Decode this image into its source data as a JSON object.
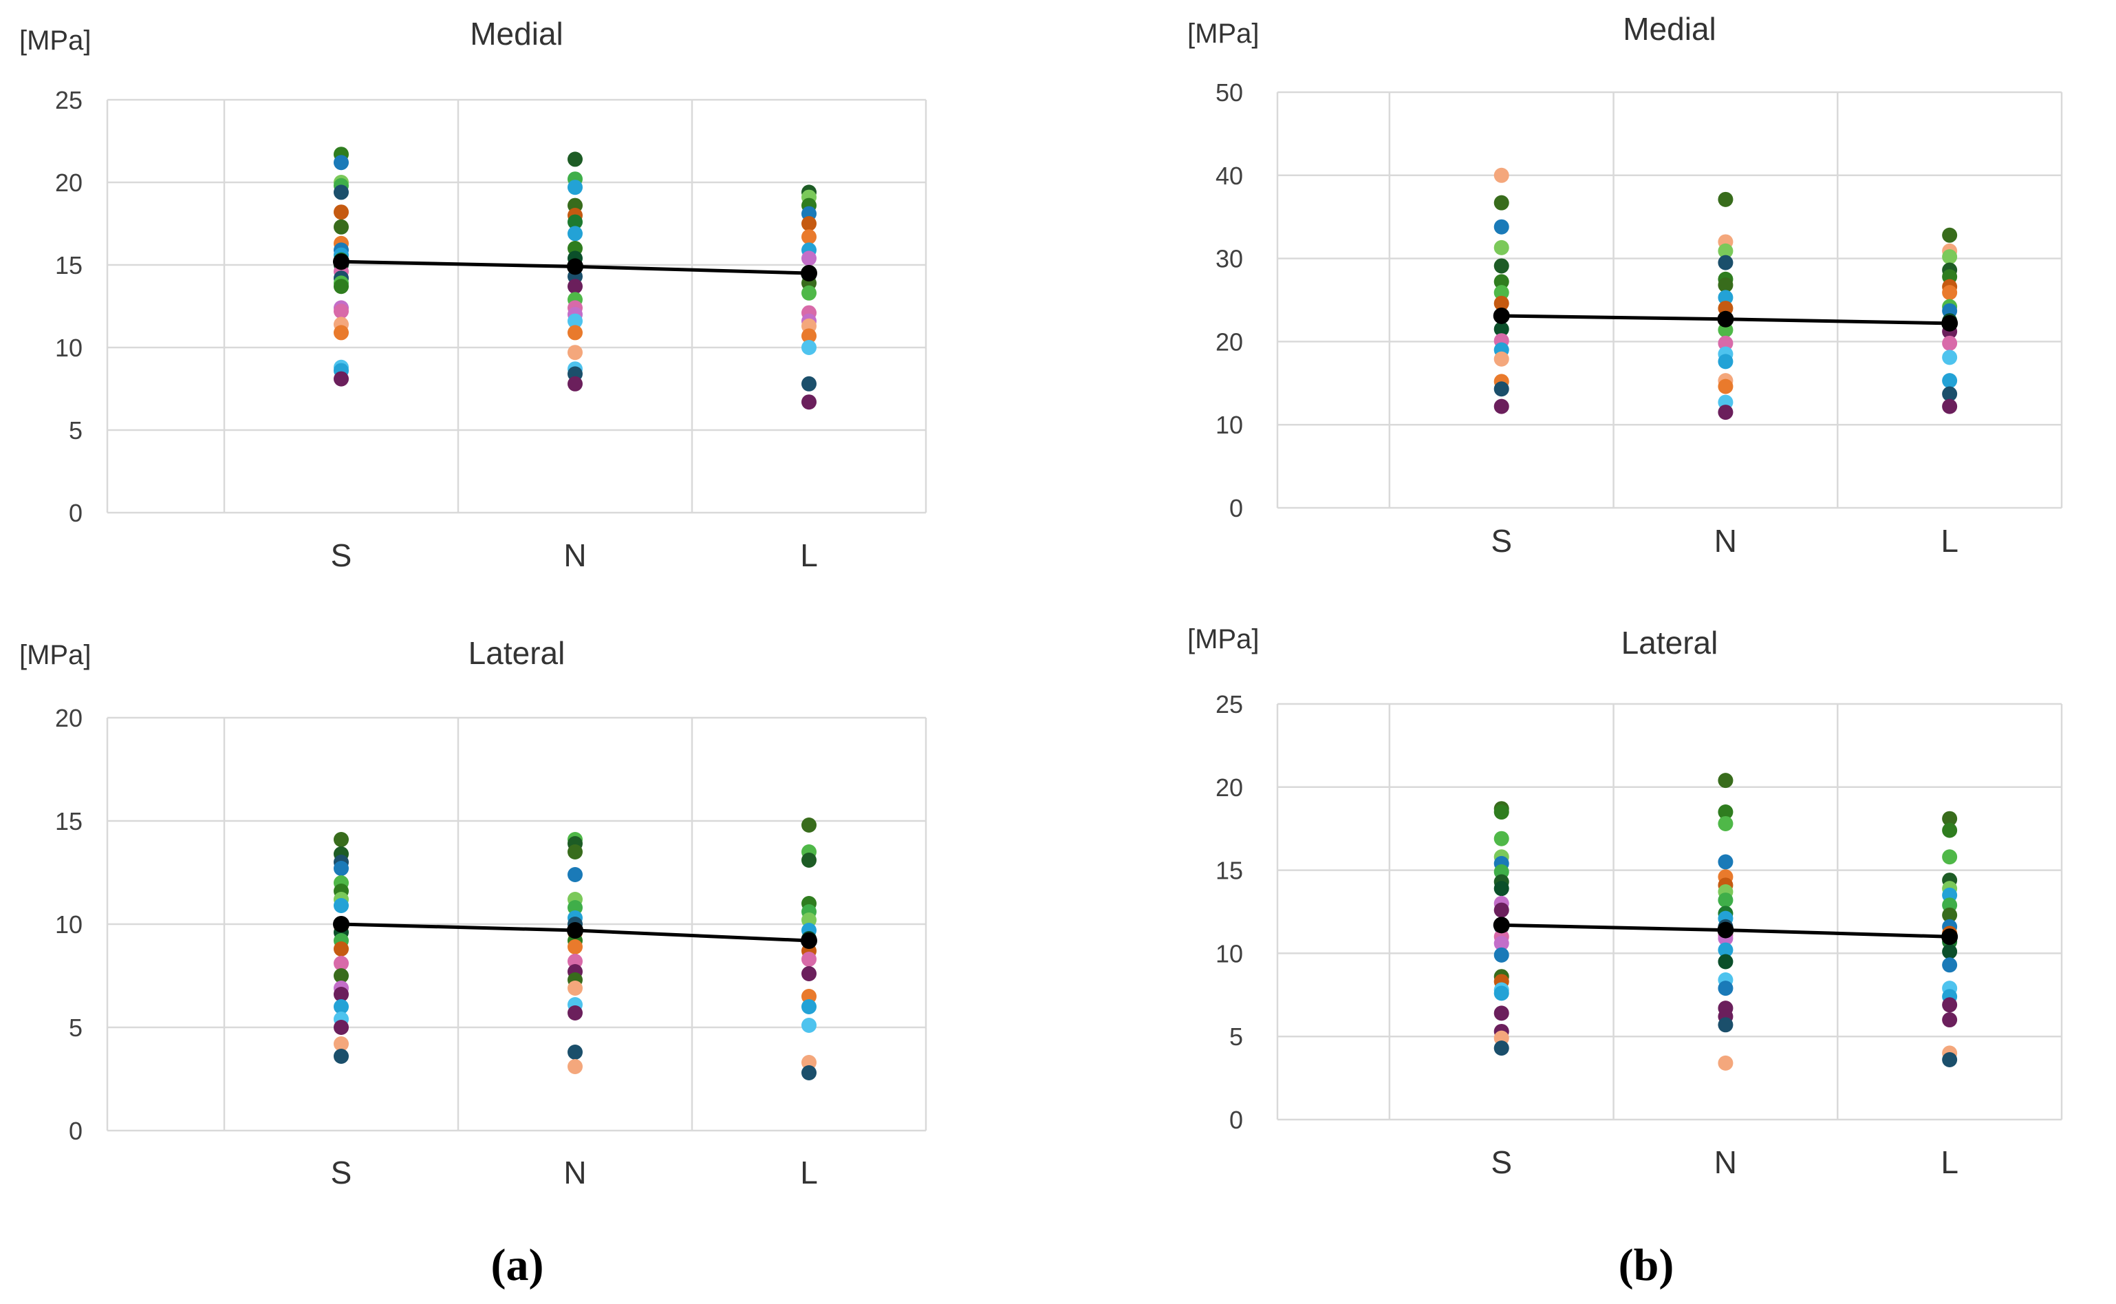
{
  "figure": {
    "panel_labels": [
      "(a)",
      "(b)"
    ]
  },
  "chart_data": [
    {
      "type": "scatter",
      "panel": "a",
      "title": "Medial",
      "unit": "[MPa]",
      "categories": [
        "S",
        "N",
        "L"
      ],
      "ylim": [
        0,
        25
      ],
      "yticks": [
        0,
        5,
        10,
        15,
        20,
        25
      ],
      "grid": true,
      "points": {
        "S": [
          {
            "y": 21.7,
            "c": "#2f7d1f"
          },
          {
            "y": 21.2,
            "c": "#1a7ab8"
          },
          {
            "y": 20.0,
            "c": "#7bc95a"
          },
          {
            "y": 19.8,
            "c": "#3fae49"
          },
          {
            "y": 19.4,
            "c": "#1b4f6b"
          },
          {
            "y": 18.2,
            "c": "#c55a11"
          },
          {
            "y": 17.3,
            "c": "#386c1c"
          },
          {
            "y": 16.3,
            "c": "#e97a2c"
          },
          {
            "y": 15.9,
            "c": "#1a7ab8"
          },
          {
            "y": 15.6,
            "c": "#23a2d6"
          },
          {
            "y": 15.3,
            "c": "#1d7a2f"
          },
          {
            "y": 15.0,
            "c": "#0b4f2a"
          },
          {
            "y": 14.6,
            "c": "#d86aa9"
          },
          {
            "y": 14.2,
            "c": "#1b4f6b"
          },
          {
            "y": 13.9,
            "c": "#4fb848"
          },
          {
            "y": 13.7,
            "c": "#2f7d1f"
          },
          {
            "y": 12.4,
            "c": "#c36ec9"
          },
          {
            "y": 12.2,
            "c": "#d86aa9"
          },
          {
            "y": 11.4,
            "c": "#f4a77c"
          },
          {
            "y": 10.9,
            "c": "#e97a2c"
          },
          {
            "y": 8.8,
            "c": "#4ec3ee"
          },
          {
            "y": 8.6,
            "c": "#23a2d6"
          },
          {
            "y": 8.1,
            "c": "#6b1f5c"
          }
        ],
        "N": [
          {
            "y": 21.4,
            "c": "#1d5c25"
          },
          {
            "y": 20.2,
            "c": "#3fae49"
          },
          {
            "y": 19.7,
            "c": "#23a2d6"
          },
          {
            "y": 18.6,
            "c": "#386c1c"
          },
          {
            "y": 18.0,
            "c": "#c55a11"
          },
          {
            "y": 17.6,
            "c": "#1d7a2f"
          },
          {
            "y": 16.9,
            "c": "#23a2d6"
          },
          {
            "y": 16.0,
            "c": "#2f7d1f"
          },
          {
            "y": 15.4,
            "c": "#0b4f2a"
          },
          {
            "y": 14.9,
            "c": "#1a7ab8"
          },
          {
            "y": 14.3,
            "c": "#1b4f6b"
          },
          {
            "y": 13.7,
            "c": "#6b1f5c"
          },
          {
            "y": 12.9,
            "c": "#4fb848"
          },
          {
            "y": 12.4,
            "c": "#d86aa9"
          },
          {
            "y": 12.0,
            "c": "#c36ec9"
          },
          {
            "y": 11.6,
            "c": "#4ec3ee"
          },
          {
            "y": 10.9,
            "c": "#e97a2c"
          },
          {
            "y": 9.7,
            "c": "#f4a77c"
          },
          {
            "y": 8.7,
            "c": "#4ec3ee"
          },
          {
            "y": 8.4,
            "c": "#1b4f6b"
          },
          {
            "y": 7.8,
            "c": "#6b1f5c"
          }
        ],
        "L": [
          {
            "y": 19.4,
            "c": "#1d5c25"
          },
          {
            "y": 19.1,
            "c": "#7bc95a"
          },
          {
            "y": 18.6,
            "c": "#2f7d1f"
          },
          {
            "y": 18.1,
            "c": "#1a7ab8"
          },
          {
            "y": 17.5,
            "c": "#c55a11"
          },
          {
            "y": 16.7,
            "c": "#e97a2c"
          },
          {
            "y": 15.9,
            "c": "#23a2d6"
          },
          {
            "y": 15.4,
            "c": "#c36ec9"
          },
          {
            "y": 14.4,
            "c": "#0b4f2a"
          },
          {
            "y": 13.9,
            "c": "#386c1c"
          },
          {
            "y": 13.3,
            "c": "#4fb848"
          },
          {
            "y": 12.1,
            "c": "#d86aa9"
          },
          {
            "y": 11.6,
            "c": "#c36ec9"
          },
          {
            "y": 11.3,
            "c": "#f4a77c"
          },
          {
            "y": 10.7,
            "c": "#e97a2c"
          },
          {
            "y": 10.0,
            "c": "#4ec3ee"
          },
          {
            "y": 7.8,
            "c": "#1b4f6b"
          },
          {
            "y": 6.7,
            "c": "#6b1f5c"
          }
        ]
      },
      "mean_line": {
        "color": "#000000",
        "values": [
          15.2,
          14.9,
          14.5
        ]
      }
    },
    {
      "type": "scatter",
      "panel": "a",
      "title": "Lateral",
      "unit": "[MPa]",
      "categories": [
        "S",
        "N",
        "L"
      ],
      "ylim": [
        0,
        20
      ],
      "yticks": [
        0,
        5,
        10,
        15,
        20
      ],
      "grid": true,
      "points": {
        "S": [
          {
            "y": 14.1,
            "c": "#386c1c"
          },
          {
            "y": 13.4,
            "c": "#1d5c25"
          },
          {
            "y": 13.0,
            "c": "#1b4f6b"
          },
          {
            "y": 12.7,
            "c": "#1a7ab8"
          },
          {
            "y": 12.0,
            "c": "#4fb848"
          },
          {
            "y": 11.6,
            "c": "#2f7d1f"
          },
          {
            "y": 11.2,
            "c": "#7bc95a"
          },
          {
            "y": 10.9,
            "c": "#23a2d6"
          },
          {
            "y": 9.9,
            "c": "#e97a2c"
          },
          {
            "y": 9.6,
            "c": "#0b4f2a"
          },
          {
            "y": 9.2,
            "c": "#3fae49"
          },
          {
            "y": 8.8,
            "c": "#c55a11"
          },
          {
            "y": 8.1,
            "c": "#d86aa9"
          },
          {
            "y": 7.5,
            "c": "#386c1c"
          },
          {
            "y": 6.9,
            "c": "#c36ec9"
          },
          {
            "y": 6.6,
            "c": "#6b1f5c"
          },
          {
            "y": 6.0,
            "c": "#23a2d6"
          },
          {
            "y": 5.4,
            "c": "#4ec3ee"
          },
          {
            "y": 5.0,
            "c": "#6b1f5c"
          },
          {
            "y": 4.2,
            "c": "#f4a77c"
          },
          {
            "y": 3.6,
            "c": "#1b4f6b"
          }
        ],
        "N": [
          {
            "y": 14.1,
            "c": "#4fb848"
          },
          {
            "y": 13.9,
            "c": "#1d5c25"
          },
          {
            "y": 13.5,
            "c": "#386c1c"
          },
          {
            "y": 12.4,
            "c": "#1a7ab8"
          },
          {
            "y": 11.2,
            "c": "#7bc95a"
          },
          {
            "y": 10.8,
            "c": "#3fae49"
          },
          {
            "y": 10.3,
            "c": "#23a2d6"
          },
          {
            "y": 10.0,
            "c": "#1b4f6b"
          },
          {
            "y": 9.6,
            "c": "#c55a11"
          },
          {
            "y": 9.2,
            "c": "#2f7d1f"
          },
          {
            "y": 8.9,
            "c": "#e97a2c"
          },
          {
            "y": 8.2,
            "c": "#d86aa9"
          },
          {
            "y": 7.7,
            "c": "#6b1f5c"
          },
          {
            "y": 7.3,
            "c": "#386c1c"
          },
          {
            "y": 6.9,
            "c": "#f4a77c"
          },
          {
            "y": 6.1,
            "c": "#4ec3ee"
          },
          {
            "y": 5.7,
            "c": "#6b1f5c"
          },
          {
            "y": 3.8,
            "c": "#1b4f6b"
          },
          {
            "y": 3.1,
            "c": "#f4a77c"
          }
        ],
        "L": [
          {
            "y": 14.8,
            "c": "#386c1c"
          },
          {
            "y": 13.5,
            "c": "#4fb848"
          },
          {
            "y": 13.1,
            "c": "#1d5c25"
          },
          {
            "y": 11.0,
            "c": "#2f7d1f"
          },
          {
            "y": 10.6,
            "c": "#3fae49"
          },
          {
            "y": 10.2,
            "c": "#7bc95a"
          },
          {
            "y": 9.7,
            "c": "#23a2d6"
          },
          {
            "y": 9.3,
            "c": "#0b4f2a"
          },
          {
            "y": 8.7,
            "c": "#c55a11"
          },
          {
            "y": 8.3,
            "c": "#d86aa9"
          },
          {
            "y": 7.6,
            "c": "#6b1f5c"
          },
          {
            "y": 6.5,
            "c": "#e97a2c"
          },
          {
            "y": 6.0,
            "c": "#23a2d6"
          },
          {
            "y": 5.1,
            "c": "#4ec3ee"
          },
          {
            "y": 3.3,
            "c": "#f4a77c"
          },
          {
            "y": 2.8,
            "c": "#1b4f6b"
          }
        ]
      },
      "mean_line": {
        "color": "#000000",
        "values": [
          10.0,
          9.7,
          9.2
        ]
      }
    },
    {
      "type": "scatter",
      "panel": "b",
      "title": "Medial",
      "unit": "[MPa]",
      "categories": [
        "S",
        "N",
        "L"
      ],
      "ylim": [
        0,
        50
      ],
      "yticks": [
        0,
        10,
        20,
        30,
        40,
        50
      ],
      "grid": true,
      "points": {
        "S": [
          {
            "y": 40.0,
            "c": "#f4a77c"
          },
          {
            "y": 36.7,
            "c": "#386c1c"
          },
          {
            "y": 33.8,
            "c": "#1a7ab8"
          },
          {
            "y": 31.3,
            "c": "#7bc95a"
          },
          {
            "y": 29.1,
            "c": "#1d5c25"
          },
          {
            "y": 27.2,
            "c": "#2f7d1f"
          },
          {
            "y": 25.9,
            "c": "#4fb848"
          },
          {
            "y": 24.6,
            "c": "#c55a11"
          },
          {
            "y": 23.1,
            "c": "#1b4f6b"
          },
          {
            "y": 21.5,
            "c": "#0b4f2a"
          },
          {
            "y": 20.1,
            "c": "#d86aa9"
          },
          {
            "y": 19.0,
            "c": "#23a2d6"
          },
          {
            "y": 17.9,
            "c": "#f4a77c"
          },
          {
            "y": 15.2,
            "c": "#e97a2c"
          },
          {
            "y": 14.3,
            "c": "#1b4f6b"
          },
          {
            "y": 12.2,
            "c": "#6b1f5c"
          }
        ],
        "N": [
          {
            "y": 37.1,
            "c": "#386c1c"
          },
          {
            "y": 32.0,
            "c": "#f4a77c"
          },
          {
            "y": 30.9,
            "c": "#7bc95a"
          },
          {
            "y": 29.5,
            "c": "#1b4f6b"
          },
          {
            "y": 27.5,
            "c": "#2f7d1f"
          },
          {
            "y": 26.8,
            "c": "#386c1c"
          },
          {
            "y": 25.3,
            "c": "#23a2d6"
          },
          {
            "y": 24.0,
            "c": "#c55a11"
          },
          {
            "y": 22.7,
            "c": "#1a7ab8"
          },
          {
            "y": 21.4,
            "c": "#4fb848"
          },
          {
            "y": 19.8,
            "c": "#d86aa9"
          },
          {
            "y": 18.5,
            "c": "#4ec3ee"
          },
          {
            "y": 17.6,
            "c": "#23a2d6"
          },
          {
            "y": 15.3,
            "c": "#f4a77c"
          },
          {
            "y": 14.6,
            "c": "#e97a2c"
          },
          {
            "y": 12.7,
            "c": "#4ec3ee"
          },
          {
            "y": 11.5,
            "c": "#6b1f5c"
          }
        ],
        "L": [
          {
            "y": 32.8,
            "c": "#386c1c"
          },
          {
            "y": 30.9,
            "c": "#f4a77c"
          },
          {
            "y": 30.2,
            "c": "#7bc95a"
          },
          {
            "y": 28.6,
            "c": "#1d5c25"
          },
          {
            "y": 27.8,
            "c": "#2f7d1f"
          },
          {
            "y": 26.6,
            "c": "#c55a11"
          },
          {
            "y": 25.9,
            "c": "#e97a2c"
          },
          {
            "y": 24.2,
            "c": "#4fb848"
          },
          {
            "y": 23.7,
            "c": "#1a7ab8"
          },
          {
            "y": 22.5,
            "c": "#0b4f2a"
          },
          {
            "y": 21.2,
            "c": "#6b1f5c"
          },
          {
            "y": 19.8,
            "c": "#d86aa9"
          },
          {
            "y": 18.1,
            "c": "#4ec3ee"
          },
          {
            "y": 15.3,
            "c": "#23a2d6"
          },
          {
            "y": 13.7,
            "c": "#1b4f6b"
          },
          {
            "y": 12.2,
            "c": "#6b1f5c"
          }
        ]
      },
      "mean_line": {
        "color": "#000000",
        "values": [
          23.1,
          22.7,
          22.2
        ]
      }
    },
    {
      "type": "scatter",
      "panel": "b",
      "title": "Lateral",
      "unit": "[MPa]",
      "categories": [
        "S",
        "N",
        "L"
      ],
      "ylim": [
        0,
        25
      ],
      "yticks": [
        0,
        5,
        10,
        15,
        20,
        25
      ],
      "grid": true,
      "points": {
        "S": [
          {
            "y": 18.7,
            "c": "#386c1c"
          },
          {
            "y": 18.5,
            "c": "#2f7d1f"
          },
          {
            "y": 16.9,
            "c": "#4fb848"
          },
          {
            "y": 15.8,
            "c": "#7bc95a"
          },
          {
            "y": 15.4,
            "c": "#1a7ab8"
          },
          {
            "y": 14.9,
            "c": "#3fae49"
          },
          {
            "y": 14.3,
            "c": "#1d5c25"
          },
          {
            "y": 13.9,
            "c": "#0b4f2a"
          },
          {
            "y": 13.0,
            "c": "#c36ec9"
          },
          {
            "y": 12.6,
            "c": "#6b1f5c"
          },
          {
            "y": 11.6,
            "c": "#1b4f6b"
          },
          {
            "y": 11.0,
            "c": "#d86aa9"
          },
          {
            "y": 10.6,
            "c": "#c36ec9"
          },
          {
            "y": 9.9,
            "c": "#1a7ab8"
          },
          {
            "y": 8.6,
            "c": "#386c1c"
          },
          {
            "y": 8.3,
            "c": "#c55a11"
          },
          {
            "y": 7.8,
            "c": "#4ec3ee"
          },
          {
            "y": 7.6,
            "c": "#23a2d6"
          },
          {
            "y": 6.4,
            "c": "#6b1f5c"
          },
          {
            "y": 5.3,
            "c": "#6b1f5c"
          },
          {
            "y": 4.9,
            "c": "#f4a77c"
          },
          {
            "y": 4.3,
            "c": "#1b4f6b"
          }
        ],
        "N": [
          {
            "y": 20.4,
            "c": "#386c1c"
          },
          {
            "y": 18.5,
            "c": "#2f7d1f"
          },
          {
            "y": 17.8,
            "c": "#4fb848"
          },
          {
            "y": 15.5,
            "c": "#1a7ab8"
          },
          {
            "y": 14.6,
            "c": "#e97a2c"
          },
          {
            "y": 14.1,
            "c": "#c55a11"
          },
          {
            "y": 13.7,
            "c": "#7bc95a"
          },
          {
            "y": 13.2,
            "c": "#3fae49"
          },
          {
            "y": 12.4,
            "c": "#1d7a2f"
          },
          {
            "y": 12.1,
            "c": "#23a2d6"
          },
          {
            "y": 11.6,
            "c": "#1b4f6b"
          },
          {
            "y": 11.1,
            "c": "#d86aa9"
          },
          {
            "y": 10.9,
            "c": "#c36ec9"
          },
          {
            "y": 10.2,
            "c": "#23a2d6"
          },
          {
            "y": 9.5,
            "c": "#0b4f2a"
          },
          {
            "y": 8.4,
            "c": "#4ec3ee"
          },
          {
            "y": 7.9,
            "c": "#1a7ab8"
          },
          {
            "y": 6.7,
            "c": "#6b1f5c"
          },
          {
            "y": 6.2,
            "c": "#6b1f5c"
          },
          {
            "y": 5.7,
            "c": "#1b4f6b"
          },
          {
            "y": 3.4,
            "c": "#f4a77c"
          }
        ],
        "L": [
          {
            "y": 18.1,
            "c": "#386c1c"
          },
          {
            "y": 17.4,
            "c": "#2f7d1f"
          },
          {
            "y": 15.8,
            "c": "#4fb848"
          },
          {
            "y": 14.4,
            "c": "#1d5c25"
          },
          {
            "y": 13.9,
            "c": "#7bc95a"
          },
          {
            "y": 13.5,
            "c": "#23a2d6"
          },
          {
            "y": 12.9,
            "c": "#3fae49"
          },
          {
            "y": 12.3,
            "c": "#386c1c"
          },
          {
            "y": 11.6,
            "c": "#1a7ab8"
          },
          {
            "y": 11.2,
            "c": "#c55a11"
          },
          {
            "y": 10.7,
            "c": "#1d7a2f"
          },
          {
            "y": 10.1,
            "c": "#0b4f2a"
          },
          {
            "y": 9.3,
            "c": "#1a7ab8"
          },
          {
            "y": 7.9,
            "c": "#4ec3ee"
          },
          {
            "y": 7.4,
            "c": "#23a2d6"
          },
          {
            "y": 6.9,
            "c": "#6b1f5c"
          },
          {
            "y": 6.0,
            "c": "#6b1f5c"
          },
          {
            "y": 4.0,
            "c": "#f4a77c"
          },
          {
            "y": 3.6,
            "c": "#1b4f6b"
          }
        ]
      },
      "mean_line": {
        "color": "#000000",
        "values": [
          11.7,
          11.4,
          11.0
        ]
      }
    }
  ]
}
